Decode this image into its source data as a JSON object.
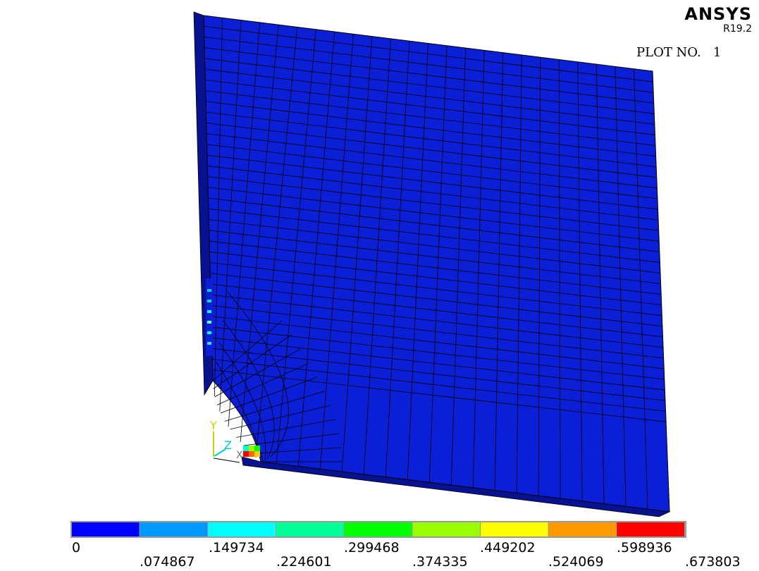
{
  "header": {
    "brand": "ANSYS",
    "version": "R19.2",
    "plot_label": "PLOT NO.",
    "plot_number": "1"
  },
  "triad": {
    "axis_y": "Y",
    "axis_z": "Z",
    "axis_x": "X"
  },
  "legend": {
    "labels_top": [
      "0",
      ".149734",
      ".299468",
      ".449202",
      ".598936"
    ],
    "labels_bottom": [
      ".074867",
      ".224601",
      ".374335",
      ".524069",
      ".673803"
    ],
    "bands": [
      "#0000ff",
      "#0099ff",
      "#00ffff",
      "#00ff99",
      "#00ff00",
      "#99ff00",
      "#ffff00",
      "#ff9900",
      "#ff0000"
    ]
  },
  "colors": {
    "mesh_face": "#0a1fd6",
    "mesh_side": "#06128f",
    "mesh_lines": "#000000",
    "background": "#ffffff"
  }
}
